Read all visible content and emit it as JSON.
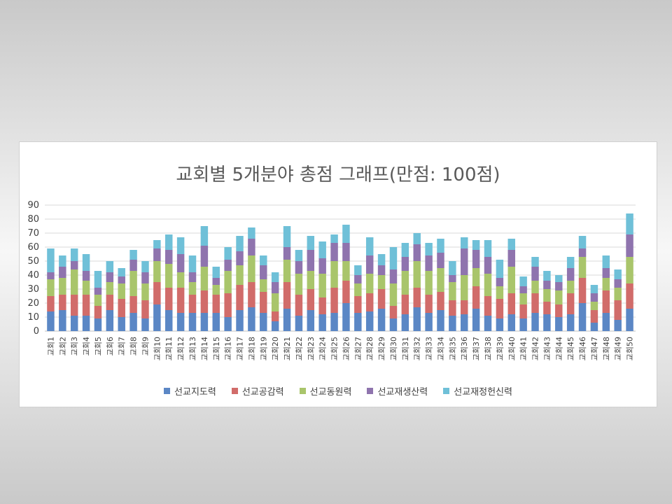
{
  "chart_data": {
    "type": "bar",
    "stacked": true,
    "title": "교회별 5개분야 총점 그래프(만점: 100점)",
    "ylim": [
      0,
      90
    ],
    "yticks": [
      0,
      10,
      20,
      30,
      40,
      50,
      60,
      70,
      80,
      90
    ],
    "grid": true,
    "legend_position": "bottom",
    "categories": [
      "교회1",
      "교회2",
      "교회3",
      "교회4",
      "교회5",
      "교회6",
      "교회7",
      "교회8",
      "교회9",
      "교회10",
      "교회11",
      "교회12",
      "교회13",
      "교회14",
      "교회15",
      "교회16",
      "교회17",
      "교회18",
      "교회19",
      "교회20",
      "교회21",
      "교회22",
      "교회23",
      "교회24",
      "교회25",
      "교회26",
      "교회27",
      "교회28",
      "교회29",
      "교회30",
      "교회31",
      "교회32",
      "교회33",
      "교회34",
      "교회35",
      "교회36",
      "교회37",
      "교회38",
      "교회39",
      "교회40",
      "교회41",
      "교회42",
      "교회43",
      "교회44",
      "교회45",
      "교회46",
      "교회47",
      "교회48",
      "교회49",
      "교회50"
    ],
    "series": [
      {
        "name": "선교지도력",
        "color": "#5b87c5",
        "values": [
          14,
          15,
          11,
          11,
          9,
          15,
          10,
          13,
          9,
          19,
          15,
          13,
          13,
          13,
          13,
          10,
          15,
          17,
          13,
          7,
          16,
          11,
          15,
          12,
          13,
          20,
          13,
          14,
          16,
          9,
          12,
          17,
          13,
          15,
          11,
          12,
          16,
          11,
          9,
          12,
          9,
          13,
          12,
          10,
          12,
          20,
          6,
          13,
          8,
          16
        ]
      },
      {
        "name": "선교공감력",
        "color": "#d16c6a",
        "values": [
          11,
          11,
          15,
          15,
          9,
          11,
          13,
          12,
          13,
          16,
          16,
          18,
          13,
          16,
          13,
          17,
          18,
          18,
          15,
          7,
          19,
          15,
          15,
          12,
          18,
          16,
          12,
          13,
          14,
          9,
          14,
          14,
          13,
          13,
          11,
          10,
          16,
          14,
          14,
          15,
          10,
          14,
          9,
          9,
          15,
          18,
          9,
          16,
          14,
          18
        ]
      },
      {
        "name": "선교동원력",
        "color": "#a9c56b",
        "values": [
          12,
          12,
          18,
          10,
          8,
          9,
          11,
          18,
          12,
          15,
          17,
          11,
          9,
          17,
          7,
          16,
          14,
          19,
          9,
          13,
          16,
          15,
          13,
          17,
          19,
          14,
          9,
          14,
          10,
          16,
          17,
          19,
          17,
          17,
          13,
          18,
          13,
          16,
          9,
          19,
          8,
          9,
          9,
          10,
          9,
          15,
          6,
          9,
          9,
          19
        ]
      },
      {
        "name": "선교재생산력",
        "color": "#8f74ae",
        "values": [
          5,
          8,
          6,
          7,
          5,
          7,
          5,
          8,
          8,
          9,
          10,
          13,
          7,
          15,
          5,
          8,
          10,
          12,
          10,
          8,
          9,
          9,
          15,
          11,
          13,
          13,
          6,
          13,
          7,
          10,
          10,
          12,
          11,
          11,
          5,
          19,
          13,
          12,
          6,
          12,
          5,
          10,
          6,
          6,
          9,
          6,
          6,
          7,
          6,
          16
        ]
      },
      {
        "name": "선교재정헌신력",
        "color": "#6fc0d8",
        "values": [
          17,
          8,
          9,
          12,
          12,
          8,
          6,
          7,
          8,
          6,
          11,
          12,
          12,
          14,
          8,
          9,
          11,
          8,
          7,
          7,
          15,
          8,
          10,
          12,
          6,
          13,
          7,
          13,
          8,
          16,
          10,
          8,
          9,
          10,
          10,
          8,
          7,
          12,
          13,
          8,
          7,
          7,
          7,
          5,
          8,
          9,
          6,
          9,
          7,
          15
        ]
      }
    ]
  }
}
